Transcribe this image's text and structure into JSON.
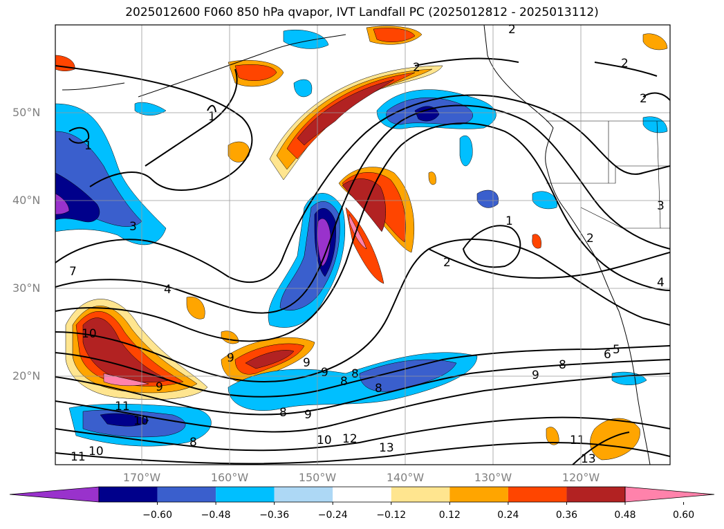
{
  "title": "2025012600 F060 850 hPa qvapor, IVT Landfall PC (2025012812 - 2025013112)",
  "map": {
    "lat_labels": [
      "50°N",
      "40°N",
      "30°N",
      "20°N"
    ],
    "lon_labels": [
      "170°W",
      "160°W",
      "150°W",
      "140°W",
      "130°W",
      "120°W"
    ],
    "contour_labels": [
      {
        "text": "2"
      },
      {
        "text": "2"
      },
      {
        "text": "2"
      },
      {
        "text": "2"
      },
      {
        "text": "1"
      },
      {
        "text": "1"
      },
      {
        "text": "1"
      },
      {
        "text": "3"
      },
      {
        "text": "3"
      },
      {
        "text": "2"
      },
      {
        "text": "2"
      },
      {
        "text": "4"
      },
      {
        "text": "4"
      },
      {
        "text": "7"
      },
      {
        "text": "10"
      },
      {
        "text": "9"
      },
      {
        "text": "9"
      },
      {
        "text": "8"
      },
      {
        "text": "8"
      },
      {
        "text": "9"
      },
      {
        "text": "8"
      },
      {
        "text": "9"
      },
      {
        "text": "11"
      },
      {
        "text": "10"
      },
      {
        "text": "8"
      },
      {
        "text": "8"
      },
      {
        "text": "9"
      },
      {
        "text": "10"
      },
      {
        "text": "12"
      },
      {
        "text": "13"
      },
      {
        "text": "11"
      },
      {
        "text": "10"
      },
      {
        "text": "11"
      },
      {
        "text": "13"
      },
      {
        "text": "6"
      },
      {
        "text": "5"
      },
      {
        "text": "9"
      },
      {
        "text": "8"
      }
    ]
  },
  "colorbar": {
    "colors": [
      "#9932cc",
      "#00008b",
      "#3a5fcd",
      "#00bfff",
      "#add8f5",
      "#ffffff",
      "#ffe58f",
      "#ffa500",
      "#ff4500",
      "#b22222",
      "#ff82ab"
    ],
    "tick_labels": [
      "−0.60",
      "−0.48",
      "−0.36",
      "−0.24",
      "−0.12",
      "0.12",
      "0.24",
      "0.36",
      "0.48",
      "0.60"
    ]
  }
}
